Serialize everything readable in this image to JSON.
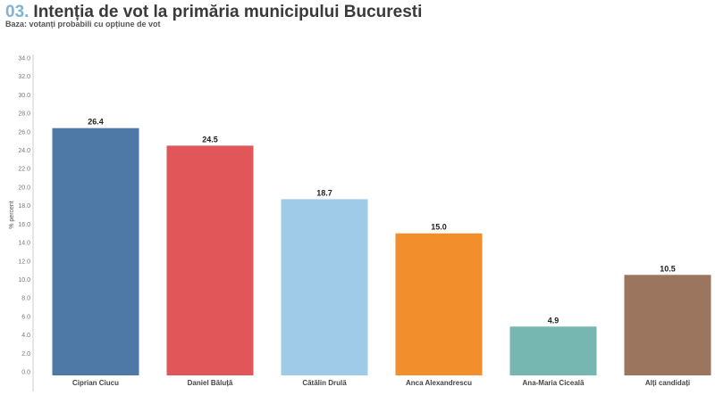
{
  "header": {
    "number": "03.",
    "title": "Intenția de vot la primăria municipului Bucuresti",
    "subtitle": "Baza: votanți probabili cu opțiune de vot"
  },
  "chart_data": {
    "type": "bar",
    "title": "Intenția de vot la primăria municipului Bucuresti",
    "subtitle": "Baza: votanți probabili cu opțiune de vot",
    "xlabel": "",
    "ylabel": "% percent",
    "ylim": [
      0,
      34
    ],
    "yticks": [
      "0.0",
      "2.0",
      "4.0",
      "6.0",
      "8.0",
      "10.0",
      "12.0",
      "14.0",
      "16.0",
      "18.0",
      "20.0",
      "22.0",
      "24.0",
      "26.0",
      "28.0",
      "30.0",
      "32.0",
      "34.0"
    ],
    "categories": [
      "Ciprian Ciucu",
      "Daniel Băluță",
      "Cătălin Drulă",
      "Anca Alexandrescu",
      "Ana-Maria Ciceală",
      "Alți candidați"
    ],
    "values": [
      26.4,
      24.5,
      18.7,
      15.0,
      4.9,
      10.5
    ],
    "value_labels": [
      "26.4",
      "24.5",
      "18.7",
      "15.0",
      "4.9",
      "10.5"
    ],
    "colors": [
      "#4e79a7",
      "#e15759",
      "#a0cbe8",
      "#f28e2b",
      "#76b7b2",
      "#9c755f"
    ],
    "grid": false,
    "legend": "none"
  }
}
